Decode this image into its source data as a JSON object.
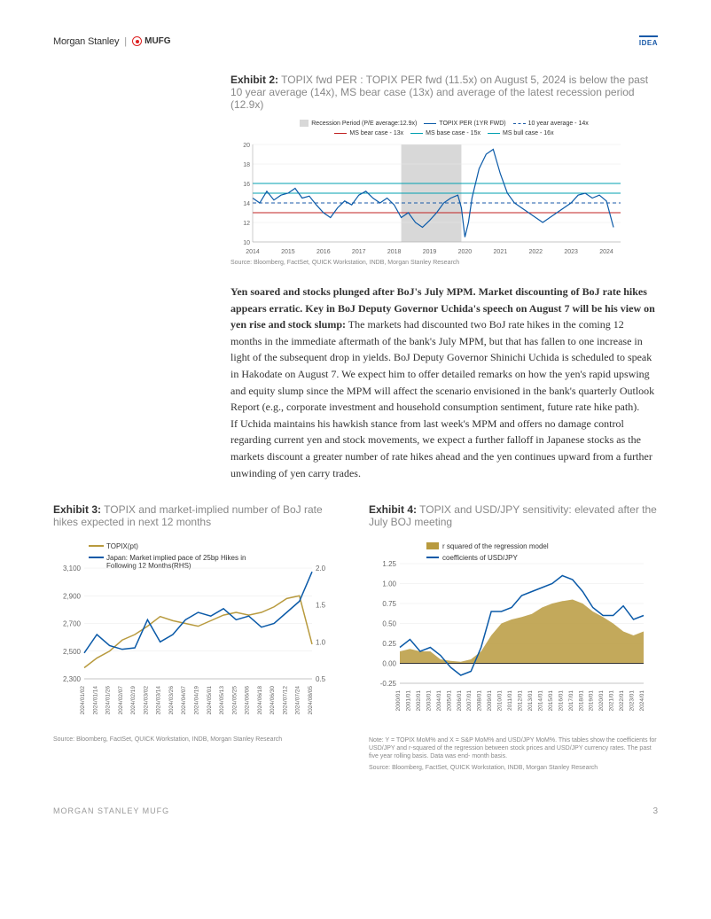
{
  "header": {
    "brand_ms": "Morgan Stanley",
    "brand_mufg": "MUFG",
    "badge": "IDEA"
  },
  "exhibit2": {
    "label": "Exhibit 2:",
    "title": "TOPIX fwd PER : TOPIX PER fwd (11.5x) on August 5, 2024 is below the past 10 year average (14x), MS bear case (13x) and average of the latest recession period (12.9x)",
    "source": "Source: Bloomberg, FactSet, QUICK Workstation, INDB, Morgan Stanley Research",
    "legend": {
      "recession": "Recession Period (P/E average:12.9x)",
      "per": "TOPIX PER (1YR FWD)",
      "avg10": "10 year average - 14x",
      "bear": "MS bear case - 13x",
      "base": "MS base case - 15x",
      "bull": "MS bull case - 16x"
    },
    "colors": {
      "recession_fill": "#d8d8d8",
      "per_line": "#0b5aa8",
      "avg10_line": "#1a5aa8",
      "bear_line": "#c02020",
      "base_line": "#00a0b0",
      "bull_line": "#00a0b0",
      "grid": "#e8e8e8",
      "axis": "#666"
    },
    "y_axis": {
      "min": 10,
      "max": 20,
      "ticks": [
        10,
        12,
        14,
        16,
        18,
        20
      ]
    },
    "x_axis": {
      "labels": [
        "2014",
        "2015",
        "2016",
        "2017",
        "2018",
        "2019",
        "2020",
        "2021",
        "2022",
        "2023",
        "2024"
      ]
    },
    "ref_lines": {
      "bear": 13,
      "avg10": 14,
      "base": 15,
      "bull": 16
    },
    "recession_band": [
      4.2,
      5.9
    ],
    "series": [
      [
        0,
        14.5
      ],
      [
        0.2,
        14.0
      ],
      [
        0.4,
        15.2
      ],
      [
        0.6,
        14.3
      ],
      [
        0.8,
        14.8
      ],
      [
        1.0,
        15.0
      ],
      [
        1.2,
        15.5
      ],
      [
        1.4,
        14.5
      ],
      [
        1.6,
        14.7
      ],
      [
        1.8,
        13.8
      ],
      [
        2.0,
        13.0
      ],
      [
        2.2,
        12.5
      ],
      [
        2.4,
        13.5
      ],
      [
        2.6,
        14.2
      ],
      [
        2.8,
        13.8
      ],
      [
        3.0,
        14.8
      ],
      [
        3.2,
        15.2
      ],
      [
        3.4,
        14.5
      ],
      [
        3.6,
        14.0
      ],
      [
        3.8,
        14.5
      ],
      [
        4.0,
        13.8
      ],
      [
        4.2,
        12.5
      ],
      [
        4.4,
        13.0
      ],
      [
        4.6,
        12.0
      ],
      [
        4.8,
        11.5
      ],
      [
        5.0,
        12.2
      ],
      [
        5.2,
        13.0
      ],
      [
        5.4,
        14.0
      ],
      [
        5.6,
        14.5
      ],
      [
        5.8,
        14.8
      ],
      [
        5.9,
        13.5
      ],
      [
        6.0,
        10.5
      ],
      [
        6.1,
        12.0
      ],
      [
        6.2,
        14.5
      ],
      [
        6.4,
        17.5
      ],
      [
        6.6,
        19.0
      ],
      [
        6.8,
        19.5
      ],
      [
        7.0,
        17.0
      ],
      [
        7.2,
        15.0
      ],
      [
        7.4,
        14.0
      ],
      [
        7.6,
        13.5
      ],
      [
        7.8,
        13.0
      ],
      [
        8.0,
        12.5
      ],
      [
        8.2,
        12.0
      ],
      [
        8.4,
        12.5
      ],
      [
        8.6,
        13.0
      ],
      [
        8.8,
        13.5
      ],
      [
        9.0,
        14.0
      ],
      [
        9.2,
        14.8
      ],
      [
        9.4,
        15.0
      ],
      [
        9.6,
        14.5
      ],
      [
        9.8,
        14.8
      ],
      [
        10.0,
        14.2
      ],
      [
        10.2,
        11.5
      ]
    ]
  },
  "body_para": {
    "bold": "Yen soared and stocks plunged after BoJ's July MPM. Market discounting of BoJ rate hikes appears erratic. Key in BoJ Deputy Governor Uchida's speech on August 7 will be his view on yen rise and stock slump:",
    "rest": " The markets had discounted two BoJ rate hikes in the coming 12 months in the immediate aftermath of the bank's July MPM, but that has fallen to one increase in light of the subsequent drop in yields. BoJ Deputy Governor Shinichi Uchida is scheduled to speak in Hakodate on August 7. We expect him to offer detailed remarks on how the yen's rapid upswing and equity slump since the MPM will affect the scenario envisioned in the bank's quarterly Outlook Report (e.g., corporate investment and household consumption sentiment, future rate hike path).",
    "p2": "If Uchida maintains his hawkish stance from last week's MPM and offers no damage control regarding current yen and stock movements, we expect a further falloff in Japanese stocks as the markets discount a greater number of rate hikes ahead and the yen continues upward from a further unwinding of yen carry trades."
  },
  "exhibit3": {
    "label": "Exhibit 3:",
    "title": "TOPIX and market-implied number of BoJ rate hikes expected in next 12 months",
    "source": "Source: Bloomberg, FactSet, QUICK Workstation, INDB, Morgan Stanley Research",
    "legend": {
      "topix": "TOPIX(pt)",
      "hikes": "Japan: Market implied pace of 25bp Hikes in Following 12 Months(RHS)"
    },
    "colors": {
      "topix": "#b89a3e",
      "hikes": "#0b5aa8",
      "grid": "#e8e8e8",
      "axis": "#666"
    },
    "y_left": {
      "min": 2300,
      "max": 3100,
      "ticks": [
        2300,
        2500,
        2700,
        2900,
        3100
      ]
    },
    "y_right": {
      "min": 0.5,
      "max": 2.0,
      "ticks": [
        0.5,
        1.0,
        1.5,
        2.0
      ]
    },
    "x_labels": [
      "2024/01/02",
      "2024/01/14",
      "2024/01/26",
      "2024/02/07",
      "2024/02/19",
      "2024/03/02",
      "2024/03/14",
      "2024/03/26",
      "2024/04/07",
      "2024/04/19",
      "2024/05/01",
      "2024/05/13",
      "2024/05/25",
      "2024/06/06",
      "2024/06/18",
      "2024/06/30",
      "2024/07/12",
      "2024/07/24",
      "2024/08/05"
    ],
    "series_topix": [
      [
        0,
        2380
      ],
      [
        1,
        2450
      ],
      [
        2,
        2500
      ],
      [
        3,
        2580
      ],
      [
        4,
        2620
      ],
      [
        5,
        2680
      ],
      [
        6,
        2750
      ],
      [
        7,
        2720
      ],
      [
        8,
        2700
      ],
      [
        9,
        2680
      ],
      [
        10,
        2720
      ],
      [
        11,
        2760
      ],
      [
        12,
        2780
      ],
      [
        13,
        2760
      ],
      [
        14,
        2780
      ],
      [
        15,
        2820
      ],
      [
        16,
        2880
      ],
      [
        17,
        2900
      ],
      [
        18,
        2550
      ]
    ],
    "series_hikes": [
      [
        0,
        0.85
      ],
      [
        1,
        1.1
      ],
      [
        2,
        0.95
      ],
      [
        3,
        0.9
      ],
      [
        4,
        0.92
      ],
      [
        5,
        1.3
      ],
      [
        6,
        1.0
      ],
      [
        7,
        1.1
      ],
      [
        8,
        1.3
      ],
      [
        9,
        1.4
      ],
      [
        10,
        1.35
      ],
      [
        11,
        1.45
      ],
      [
        12,
        1.3
      ],
      [
        13,
        1.35
      ],
      [
        14,
        1.2
      ],
      [
        15,
        1.25
      ],
      [
        16,
        1.4
      ],
      [
        17,
        1.55
      ],
      [
        18,
        1.95
      ]
    ]
  },
  "exhibit4": {
    "label": "Exhibit 4:",
    "title": "TOPIX and USD/JPY sensitivity: elevated after the July BOJ meeting",
    "note": "Note: Y = TOPIX MoM% and X = S&P MoM% and USD/JPY MoM%. This tables show the coefficients for USD/JPY and r-squared of the regression between stock prices and USD/JPY currency rates. The past five year rolling basis. Data was end- month basis.",
    "source": "Source: Bloomberg, FactSet, QUICK Workstation, INDB, Morgan Stanley Research",
    "legend": {
      "r2": "r squared of the regression model",
      "coef": "coefficients of USD/JPY"
    },
    "colors": {
      "r2_fill": "#b89a3e",
      "coef_line": "#0b5aa8",
      "grid": "#e8e8e8",
      "zero": "#333",
      "axis": "#666"
    },
    "y_axis": {
      "min": -0.25,
      "max": 1.25,
      "ticks": [
        -0.25,
        0.0,
        0.25,
        0.5,
        0.75,
        1.0,
        1.25
      ]
    },
    "x_labels": [
      "2000/01",
      "2001/01",
      "2002/01",
      "2003/01",
      "2004/01",
      "2005/01",
      "2006/01",
      "2007/01",
      "2008/01",
      "2009/01",
      "2010/01",
      "2011/01",
      "2012/01",
      "2013/01",
      "2014/01",
      "2015/01",
      "2016/01",
      "2017/01",
      "2018/01",
      "2019/01",
      "2020/01",
      "2021/01",
      "2022/01",
      "2023/01",
      "2024/01"
    ],
    "series_r2": [
      [
        0,
        0.15
      ],
      [
        1,
        0.18
      ],
      [
        2,
        0.15
      ],
      [
        3,
        0.15
      ],
      [
        4,
        0.05
      ],
      [
        5,
        0.03
      ],
      [
        6,
        0.02
      ],
      [
        7,
        0.05
      ],
      [
        8,
        0.15
      ],
      [
        9,
        0.35
      ],
      [
        10,
        0.5
      ],
      [
        11,
        0.55
      ],
      [
        12,
        0.58
      ],
      [
        13,
        0.62
      ],
      [
        14,
        0.7
      ],
      [
        15,
        0.75
      ],
      [
        16,
        0.78
      ],
      [
        17,
        0.8
      ],
      [
        18,
        0.75
      ],
      [
        19,
        0.65
      ],
      [
        20,
        0.58
      ],
      [
        21,
        0.5
      ],
      [
        22,
        0.4
      ],
      [
        23,
        0.35
      ],
      [
        24,
        0.4
      ]
    ],
    "series_coef": [
      [
        0,
        0.2
      ],
      [
        1,
        0.3
      ],
      [
        2,
        0.15
      ],
      [
        3,
        0.2
      ],
      [
        4,
        0.1
      ],
      [
        5,
        -0.05
      ],
      [
        6,
        -0.15
      ],
      [
        7,
        -0.1
      ],
      [
        8,
        0.2
      ],
      [
        9,
        0.65
      ],
      [
        10,
        0.65
      ],
      [
        11,
        0.7
      ],
      [
        12,
        0.85
      ],
      [
        13,
        0.9
      ],
      [
        14,
        0.95
      ],
      [
        15,
        1.0
      ],
      [
        16,
        1.1
      ],
      [
        17,
        1.05
      ],
      [
        18,
        0.9
      ],
      [
        19,
        0.7
      ],
      [
        20,
        0.6
      ],
      [
        21,
        0.6
      ],
      [
        22,
        0.72
      ],
      [
        23,
        0.55
      ],
      [
        24,
        0.6
      ]
    ]
  },
  "footer": {
    "left": "MORGAN STANLEY MUFG",
    "page": "3"
  }
}
